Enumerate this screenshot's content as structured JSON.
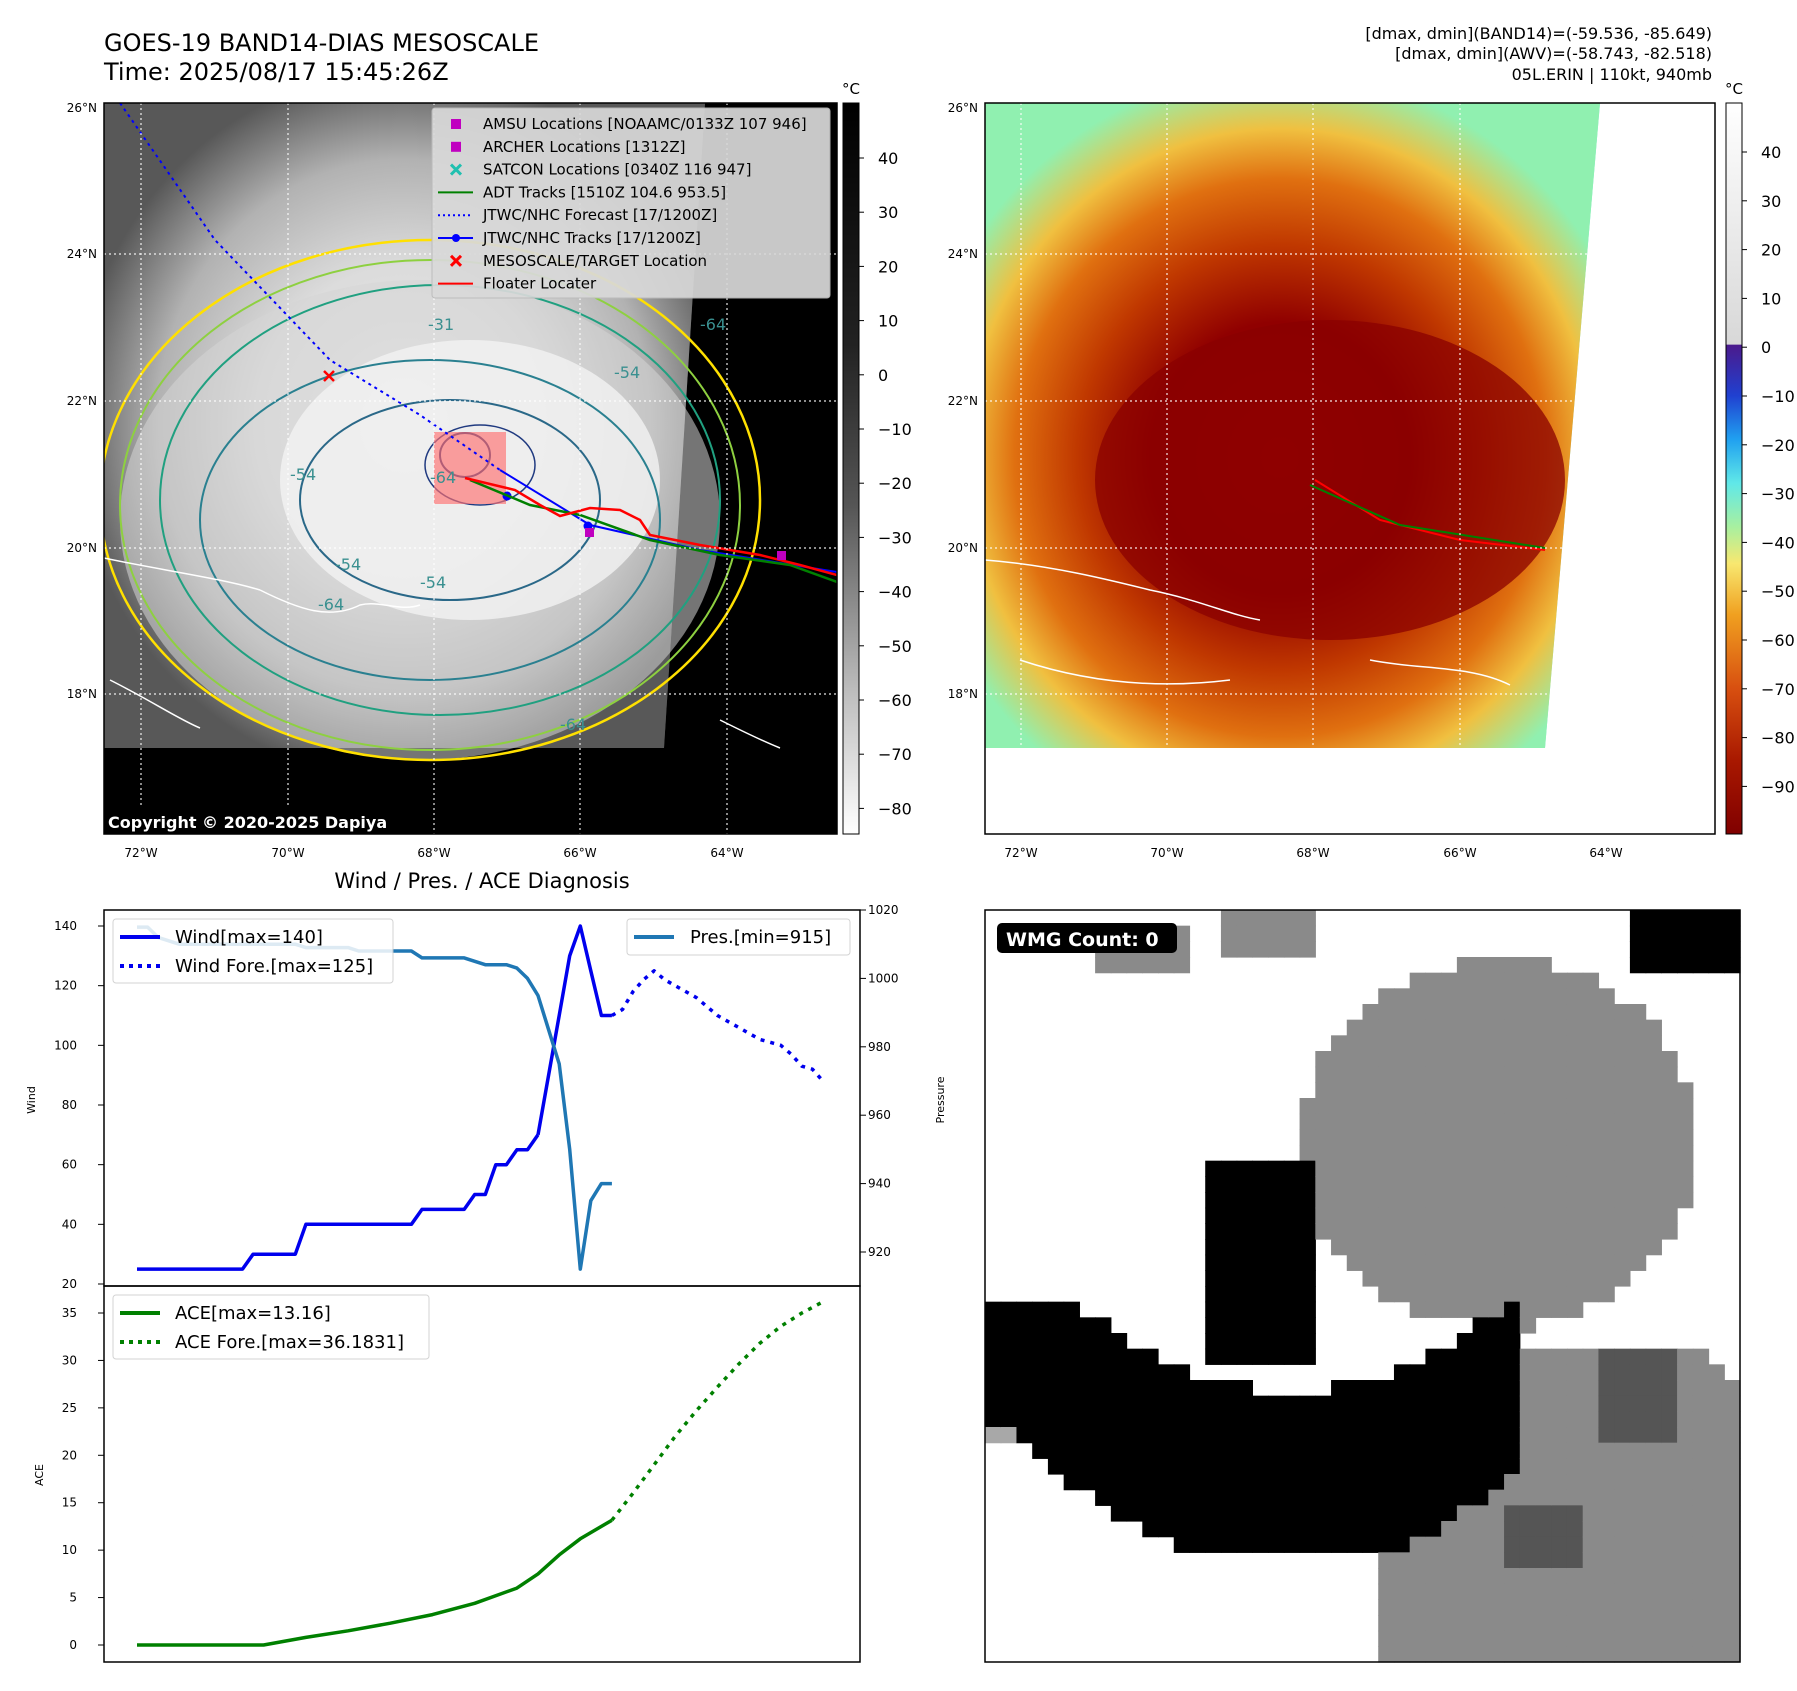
{
  "header": {
    "title_line1": "GOES-19 BAND14-DIAS MESOSCALE",
    "title_line2": "Time: 2025/08/17 15:45:26Z",
    "stats_line1": "[dmax, dmin](BAND14)=(-59.536, -85.649)",
    "stats_line2": "[dmax, dmin](AWV)=(-58.743, -82.518)",
    "stats_line3": "05L.ERIN | 110kt, 940mb"
  },
  "maps": {
    "lat_labels": [
      "26°N",
      "24°N",
      "22°N",
      "20°N",
      "18°N"
    ],
    "lon_labels": [
      "72°W",
      "70°W",
      "68°W",
      "66°W",
      "64°W"
    ],
    "copyright": "Copyright © 2020-2025 Dapiya",
    "contour_labels": [
      "-31",
      "-54",
      "-64",
      "-54",
      "-64",
      "-54",
      "-54",
      "-64",
      "-64"
    ],
    "colorbar_unit": "°C",
    "gray_colorbar_ticks": [
      "40",
      "30",
      "20",
      "10",
      "0",
      "−10",
      "−20",
      "−30",
      "−40",
      "−50",
      "−60",
      "−70",
      "−80"
    ],
    "color_colorbar_ticks": [
      "40",
      "30",
      "20",
      "10",
      "0",
      "−10",
      "−20",
      "−30",
      "−40",
      "−50",
      "−60",
      "−70",
      "−80",
      "−90"
    ],
    "legend": [
      {
        "label": "AMSU Locations [NOAAMC/0133Z 107 946]",
        "marker": "square",
        "color": "#c000c0"
      },
      {
        "label": "ARCHER Locations [1312Z]",
        "marker": "square",
        "color": "#c000c0"
      },
      {
        "label": "SATCON Locations [0340Z 116 947]",
        "marker": "x",
        "color": "#20c0b0"
      },
      {
        "label": "ADT Tracks [1510Z 104.6 953.5]",
        "marker": "line",
        "color": "#008000"
      },
      {
        "label": "JTWC/NHC Forecast [17/1200Z]",
        "marker": "dotted",
        "color": "#0000ff"
      },
      {
        "label": "JTWC/NHC Tracks [17/1200Z]",
        "marker": "line-dot",
        "color": "#0000ff"
      },
      {
        "label": "MESOSCALE/TARGET Location",
        "marker": "x",
        "color": "#ff0000"
      },
      {
        "label": "Floater Locater",
        "marker": "line",
        "color": "#ff0000"
      }
    ]
  },
  "diagnosis": {
    "title": "Wind / Pres. / ACE Diagnosis",
    "wind_ylabel": "Wind",
    "pres_ylabel": "Pressure",
    "ace_ylabel": "ACE",
    "wind_ticks": [
      "140",
      "120",
      "100",
      "80",
      "60",
      "40",
      "20"
    ],
    "pres_ticks": [
      "1020",
      "1000",
      "980",
      "960",
      "940",
      "920"
    ],
    "ace_ticks": [
      "35",
      "30",
      "25",
      "20",
      "15",
      "10",
      "5",
      "0"
    ],
    "legend_wind": "Wind[max=140]",
    "legend_wind_fore": "Wind Fore.[max=125]",
    "legend_pres": "Pres.[min=915]",
    "legend_ace": "ACE[max=13.16]",
    "legend_ace_fore": "ACE Fore.[max=36.1831]"
  },
  "wmg": {
    "label": "WMG Count: 0"
  },
  "chart_data": [
    {
      "type": "line",
      "title": "Wind / Pres. / ACE Diagnosis",
      "ylabel": "Wind",
      "ylim": [
        20,
        145
      ],
      "series": [
        {
          "name": "Wind[max=140]",
          "color": "#0000ee",
          "style": "solid",
          "x": [
            0,
            1,
            2,
            3,
            4,
            5,
            6,
            7,
            8,
            9,
            10,
            11,
            12,
            13,
            14,
            15,
            16,
            17,
            18,
            19,
            20,
            21,
            22,
            23,
            24,
            25,
            26,
            27,
            28,
            29,
            30,
            31,
            32,
            33,
            34,
            35,
            36,
            37,
            38
          ],
          "values": [
            25,
            25,
            25,
            25,
            25,
            25,
            25,
            25,
            25,
            25,
            25,
            30,
            30,
            30,
            30,
            30,
            40,
            40,
            40,
            40,
            40,
            40,
            40,
            40,
            40,
            40,
            40,
            45,
            45,
            45,
            45,
            45,
            50,
            50,
            60,
            60,
            65,
            65,
            70
          ]
        },
        {
          "name": "Wind (cont.)",
          "color": "#0000ee",
          "style": "solid",
          "x": [
            38,
            39,
            40,
            41,
            42,
            43,
            44,
            45
          ],
          "values": [
            70,
            90,
            110,
            130,
            140,
            125,
            110,
            110
          ]
        },
        {
          "name": "Wind Fore.[max=125]",
          "color": "#0000ee",
          "style": "dotted",
          "x": [
            45,
            46,
            47,
            48,
            49,
            50,
            51,
            52,
            53,
            54,
            55,
            56,
            57,
            58,
            59,
            60,
            61,
            62,
            63,
            64,
            65
          ],
          "values": [
            110,
            112,
            118,
            122,
            125,
            122,
            120,
            118,
            116,
            113,
            110,
            108,
            106,
            104,
            102,
            101,
            100,
            97,
            93,
            92,
            88
          ]
        }
      ]
    },
    {
      "type": "line",
      "ylabel": "Pressure",
      "ylim": [
        910,
        1020
      ],
      "series": [
        {
          "name": "Pres.[min=915]",
          "color": "#1f77b4",
          "style": "solid",
          "x": [
            0,
            1,
            2,
            3,
            4,
            5,
            6,
            7,
            8,
            9,
            10,
            11,
            12,
            13,
            14,
            15,
            16,
            17,
            18,
            19,
            20,
            21,
            22,
            23,
            24,
            25,
            26,
            27,
            28,
            29,
            30,
            31,
            32,
            33,
            34,
            35,
            36,
            37,
            38,
            39,
            40,
            41,
            42,
            43,
            44,
            45
          ],
          "values": [
            1015,
            1015,
            1012,
            1011,
            1010,
            1010,
            1010,
            1010,
            1010,
            1010,
            1010,
            1010,
            1010,
            1010,
            1010,
            1010,
            1009,
            1009,
            1009,
            1009,
            1009,
            1008,
            1008,
            1008,
            1008,
            1008,
            1008,
            1006,
            1006,
            1006,
            1006,
            1006,
            1005,
            1004,
            1004,
            1004,
            1003,
            1000,
            995,
            985,
            975,
            950,
            915,
            935,
            940,
            940
          ]
        }
      ]
    },
    {
      "type": "line",
      "ylabel": "ACE",
      "ylim": [
        -1,
        37
      ],
      "series": [
        {
          "name": "ACE[max=13.16]",
          "color": "#008000",
          "style": "solid",
          "x": [
            0,
            8,
            12,
            16,
            20,
            24,
            28,
            32,
            36,
            38,
            40,
            42,
            44,
            45
          ],
          "values": [
            0,
            0,
            0,
            0.8,
            1.5,
            2.3,
            3.2,
            4.4,
            6.0,
            7.5,
            9.5,
            11.2,
            12.5,
            13.16
          ]
        },
        {
          "name": "ACE Fore.[max=36.1831]",
          "color": "#008000",
          "style": "dotted",
          "x": [
            45,
            47,
            49,
            51,
            53,
            55,
            57,
            59,
            61,
            63,
            65
          ],
          "values": [
            13.16,
            16,
            19,
            22,
            24.7,
            27.2,
            29.6,
            31.8,
            33.6,
            35,
            36.18
          ]
        }
      ]
    }
  ]
}
